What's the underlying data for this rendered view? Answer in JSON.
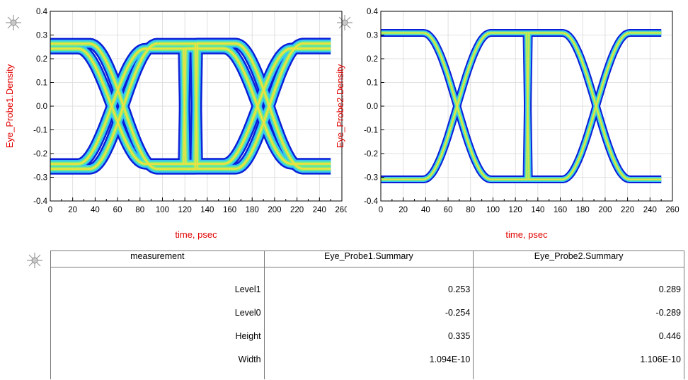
{
  "chart_data": [
    {
      "type": "eye-diagram",
      "xlabel": "time, psec",
      "ylabel": "Eye_Probe1.Density",
      "xlim": [
        0,
        260
      ],
      "ylim": [
        -0.4,
        0.4
      ],
      "xticks": [
        "0",
        "20",
        "40",
        "60",
        "80",
        "100",
        "120",
        "140",
        "160",
        "180",
        "200",
        "220",
        "240",
        "260"
      ],
      "yticks": [
        "0.4",
        "0.3",
        "0.2",
        "0.1",
        "0.0",
        "-0.1",
        "-0.2",
        "-0.3",
        "-0.4"
      ],
      "grid": true,
      "level1": 0.253,
      "level0": -0.254,
      "crossings_psec": [
        60,
        190
      ]
    },
    {
      "type": "eye-diagram",
      "xlabel": "time, psec",
      "ylabel": "Eye_Probe2.Density",
      "xlim": [
        0,
        260
      ],
      "ylim": [
        -0.4,
        0.4
      ],
      "xticks": [
        "0",
        "20",
        "40",
        "60",
        "80",
        "100",
        "120",
        "140",
        "160",
        "180",
        "200",
        "220",
        "240",
        "260"
      ],
      "yticks": [
        "0.4",
        "0.3",
        "0.2",
        "0.1",
        "0.0",
        "-0.1",
        "-0.2",
        "-0.3",
        "-0.4"
      ],
      "grid": true,
      "level1": 0.289,
      "level0": -0.289,
      "crossings_psec": [
        68,
        192
      ]
    }
  ],
  "table": {
    "headers": [
      "measurement",
      "Eye_Probe1.Summary",
      "Eye_Probe2.Summary"
    ],
    "rows": [
      {
        "name": "Level1",
        "p1": "0.253",
        "p2": "0.289"
      },
      {
        "name": "Level0",
        "p1": "-0.254",
        "p2": "-0.289"
      },
      {
        "name": "Height",
        "p1": "0.335",
        "p2": "0.446"
      },
      {
        "name": "Width",
        "p1": "1.094E-10",
        "p2": "1.106E-10"
      }
    ]
  },
  "colors": {
    "axis_label": "#e00000",
    "outer_band": "#0a1ed8",
    "mid_band": "#38c8f0",
    "inner_band": "#7df07a",
    "hot_band": "#f0e040",
    "marker": "#9a9a9a"
  }
}
